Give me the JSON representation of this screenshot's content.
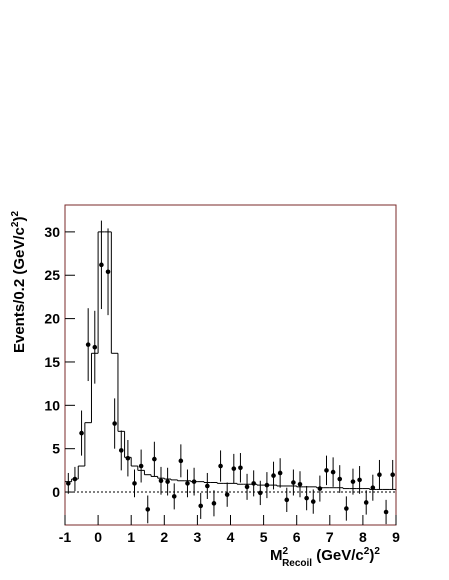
{
  "chart_data": {
    "type": "histogram-points",
    "x_label": [
      {
        "text": "M"
      },
      {
        "text": "2",
        "shift": "sup"
      },
      {
        "text": "Recoil",
        "shift": "sub"
      },
      {
        "text": " (GeV/c"
      },
      {
        "text": "2",
        "shift": "sup"
      },
      {
        "text": ")"
      },
      {
        "text": "2",
        "shift": "sup"
      }
    ],
    "y_label": [
      {
        "text": "Events/0.2 (GeV/c"
      },
      {
        "text": "2",
        "shift": "sup"
      },
      {
        "text": ")"
      },
      {
        "text": "2",
        "shift": "sup"
      }
    ],
    "xlim": [
      -1,
      9
    ],
    "ylim": [
      -3.8,
      33.1
    ],
    "xticks": [
      -1,
      0,
      1,
      2,
      3,
      4,
      5,
      6,
      7,
      8,
      9
    ],
    "yticks": [
      0,
      5,
      10,
      15,
      20,
      25,
      30
    ],
    "zero_line": 0,
    "frame_color": "#7a2a2a",
    "bins": [
      -1,
      -0.8,
      -0.6,
      -0.4,
      -0.2,
      0,
      0.2,
      0.4,
      0.6,
      0.8,
      1,
      1.2,
      1.4,
      1.6,
      1.8,
      2,
      2.2,
      2.4,
      2.6,
      2.8,
      3,
      3.2,
      3.4,
      3.6,
      3.8,
      4,
      4.2,
      4.4,
      4.6,
      4.8,
      5,
      5.2,
      5.4,
      5.6,
      5.8,
      6,
      6.2,
      6.4,
      6.6,
      6.8,
      7,
      7.2,
      7.4,
      7.6,
      7.8,
      8,
      8.2,
      8.4,
      8.6,
      8.8,
      9
    ],
    "histogram": [
      1.2,
      1.5,
      3,
      8,
      16,
      30,
      30,
      16,
      7,
      4,
      3,
      2.5,
      2,
      1.8,
      1.6,
      1.5,
      1.4,
      1.3,
      1.3,
      1.2,
      1.2,
      1.1,
      1.1,
      1.0,
      1.0,
      1.0,
      0.9,
      0.9,
      0.9,
      0.8,
      0.8,
      0.8,
      0.7,
      0.7,
      0.7,
      0.6,
      0.6,
      0.6,
      0.5,
      0.5,
      0.5,
      0.5,
      0.4,
      0.4,
      0.4,
      0.4,
      0.3,
      0.3,
      0.3,
      0.3
    ],
    "x": [
      -0.9,
      -0.7,
      -0.5,
      -0.3,
      -0.1,
      0.1,
      0.3,
      0.5,
      0.7,
      0.9,
      1.1,
      1.3,
      1.5,
      1.7,
      1.9,
      2.1,
      2.3,
      2.5,
      2.7,
      2.9,
      3.1,
      3.3,
      3.5,
      3.7,
      3.9,
      4.1,
      4.3,
      4.5,
      4.7,
      4.9,
      5.1,
      5.3,
      5.5,
      5.7,
      5.9,
      6.1,
      6.3,
      6.5,
      6.7,
      6.9,
      7.1,
      7.3,
      7.5,
      7.7,
      7.9,
      8.1,
      8.3,
      8.5,
      8.7,
      8.9
    ],
    "values": [
      1.0,
      1.5,
      6.8,
      17,
      16.7,
      26.2,
      25.4,
      7.9,
      4.8,
      3.9,
      1.0,
      3.0,
      -2.0,
      3.8,
      1.3,
      1.2,
      -0.5,
      3.6,
      1.0,
      1.2,
      -1.6,
      0.7,
      -1.3,
      3.0,
      -0.3,
      2.7,
      2.8,
      0.6,
      1.0,
      -0.1,
      0.8,
      1.9,
      2.2,
      -0.9,
      1.1,
      0.9,
      -0.7,
      -1.1,
      0.4,
      2.5,
      2.3,
      1.5,
      -1.9,
      1.2,
      1.4,
      -1.2,
      0.5,
      2.0,
      -2.3,
      2.0
    ],
    "errors": [
      1.2,
      1.4,
      2.6,
      4.2,
      4.2,
      5.1,
      5.0,
      2.9,
      2.3,
      2.1,
      1.6,
      1.9,
      1.6,
      2.0,
      1.6,
      1.6,
      1.5,
      1.9,
      1.6,
      1.6,
      1.5,
      1.5,
      1.5,
      1.8,
      1.4,
      1.7,
      1.7,
      1.5,
      1.5,
      1.4,
      1.5,
      1.6,
      1.7,
      1.4,
      1.5,
      1.5,
      1.4,
      1.4,
      1.5,
      1.7,
      1.7,
      1.6,
      1.4,
      1.5,
      1.6,
      1.4,
      1.5,
      1.7,
      1.4,
      1.7
    ]
  }
}
